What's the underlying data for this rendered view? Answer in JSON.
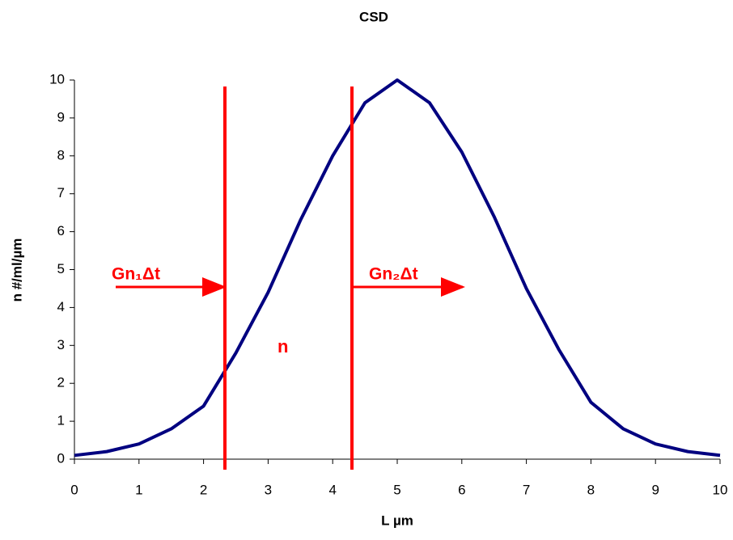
{
  "chart_data": {
    "type": "line",
    "title": "CSD",
    "x_label": "L µm",
    "y_label": "n #/ml/µm",
    "x": [
      0,
      0.5,
      1,
      1.5,
      2,
      2.5,
      3,
      3.5,
      4,
      4.5,
      5,
      5.5,
      6,
      6.5,
      7,
      7.5,
      8,
      8.5,
      9,
      9.5,
      10
    ],
    "series": [
      {
        "color": "#000080",
        "values": [
          0.1,
          0.2,
          0.4,
          0.8,
          1.4,
          2.8,
          4.4,
          6.3,
          8.0,
          9.4,
          10,
          9.4,
          8.1,
          6.4,
          4.5,
          2.9,
          1.5,
          0.8,
          0.4,
          0.2,
          0.1
        ]
      }
    ],
    "xlim": [
      0,
      10
    ],
    "xticks": [
      0,
      1,
      2,
      3,
      4,
      5,
      6,
      7,
      8,
      9,
      10
    ],
    "ylim": [
      0,
      10
    ],
    "yticks": [
      0,
      1,
      2,
      3,
      4,
      5,
      6,
      7,
      8,
      9,
      10
    ],
    "grid": false,
    "annotations": [
      "Gn₁Δt",
      "Gn₂Δt",
      "n"
    ],
    "annotation_color": "#ff0000"
  }
}
